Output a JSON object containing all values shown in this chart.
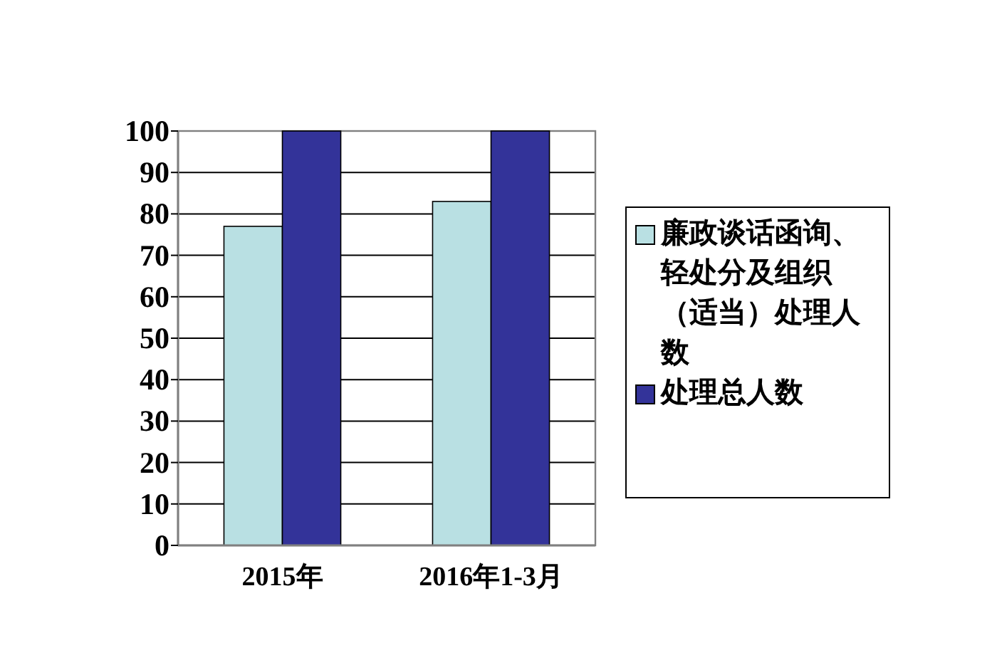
{
  "chart_data": {
    "type": "bar",
    "categories": [
      "2015年",
      "2016年1-3月"
    ],
    "series": [
      {
        "name": "廉政谈话函询、轻处分及组织（适当）处理人数",
        "color": "#b9e0e3",
        "values": [
          77,
          83
        ]
      },
      {
        "name": "处理总人数",
        "color": "#333399",
        "values": [
          100,
          100
        ]
      }
    ],
    "ylim": [
      0,
      100
    ],
    "yticks": [
      0,
      10,
      20,
      30,
      40,
      50,
      60,
      70,
      80,
      90,
      100
    ],
    "grid": "y",
    "legend": "right"
  }
}
